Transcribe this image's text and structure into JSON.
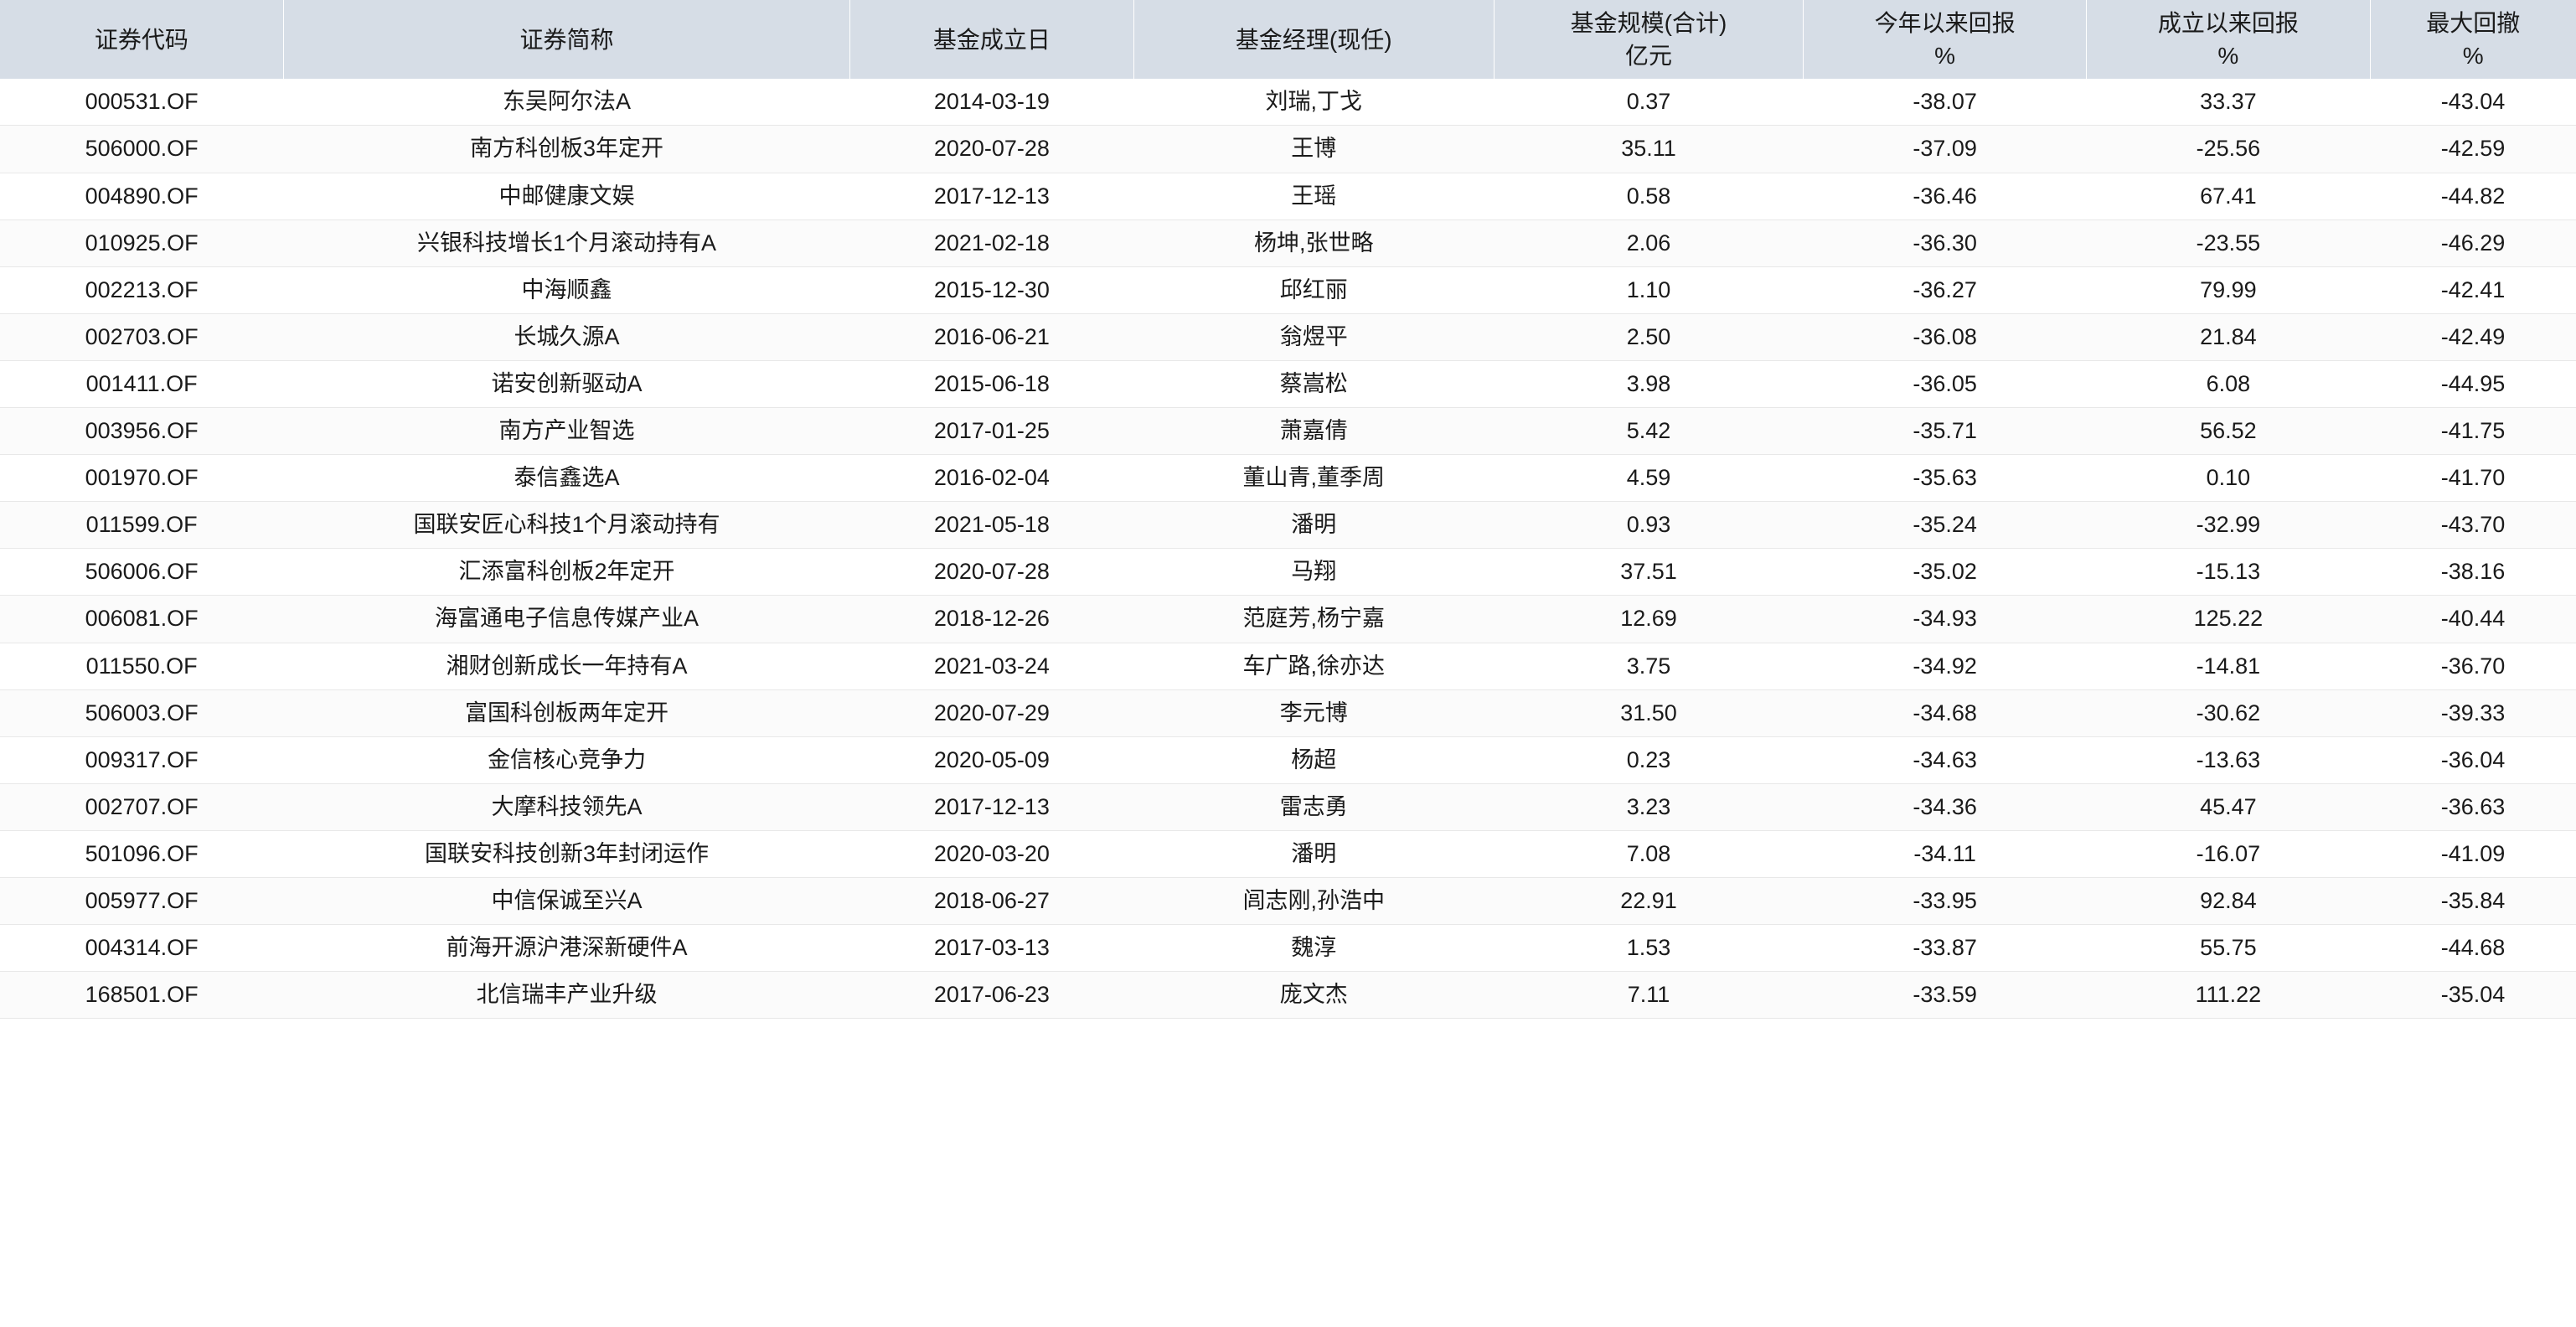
{
  "table": {
    "columns": [
      "证券代码",
      "证券简称",
      "基金成立日",
      "基金经理(现任)",
      "基金规模(合计)\n亿元",
      "今年以来回报\n%",
      "成立以来回报\n%",
      "最大回撤\n%"
    ],
    "rows": [
      [
        "000531.OF",
        "东吴阿尔法A",
        "2014-03-19",
        "刘瑞,丁戈",
        "0.37",
        "-38.07",
        "33.37",
        "-43.04"
      ],
      [
        "506000.OF",
        "南方科创板3年定开",
        "2020-07-28",
        "王博",
        "35.11",
        "-37.09",
        "-25.56",
        "-42.59"
      ],
      [
        "004890.OF",
        "中邮健康文娱",
        "2017-12-13",
        "王瑶",
        "0.58",
        "-36.46",
        "67.41",
        "-44.82"
      ],
      [
        "010925.OF",
        "兴银科技增长1个月滚动持有A",
        "2021-02-18",
        "杨坤,张世略",
        "2.06",
        "-36.30",
        "-23.55",
        "-46.29"
      ],
      [
        "002213.OF",
        "中海顺鑫",
        "2015-12-30",
        "邱红丽",
        "1.10",
        "-36.27",
        "79.99",
        "-42.41"
      ],
      [
        "002703.OF",
        "长城久源A",
        "2016-06-21",
        "翁煜平",
        "2.50",
        "-36.08",
        "21.84",
        "-42.49"
      ],
      [
        "001411.OF",
        "诺安创新驱动A",
        "2015-06-18",
        "蔡嵩松",
        "3.98",
        "-36.05",
        "6.08",
        "-44.95"
      ],
      [
        "003956.OF",
        "南方产业智选",
        "2017-01-25",
        "萧嘉倩",
        "5.42",
        "-35.71",
        "56.52",
        "-41.75"
      ],
      [
        "001970.OF",
        "泰信鑫选A",
        "2016-02-04",
        "董山青,董季周",
        "4.59",
        "-35.63",
        "0.10",
        "-41.70"
      ],
      [
        "011599.OF",
        "国联安匠心科技1个月滚动持有",
        "2021-05-18",
        "潘明",
        "0.93",
        "-35.24",
        "-32.99",
        "-43.70"
      ],
      [
        "506006.OF",
        "汇添富科创板2年定开",
        "2020-07-28",
        "马翔",
        "37.51",
        "-35.02",
        "-15.13",
        "-38.16"
      ],
      [
        "006081.OF",
        "海富通电子信息传媒产业A",
        "2018-12-26",
        "范庭芳,杨宁嘉",
        "12.69",
        "-34.93",
        "125.22",
        "-40.44"
      ],
      [
        "011550.OF",
        "湘财创新成长一年持有A",
        "2021-03-24",
        "车广路,徐亦达",
        "3.75",
        "-34.92",
        "-14.81",
        "-36.70"
      ],
      [
        "506003.OF",
        "富国科创板两年定开",
        "2020-07-29",
        "李元博",
        "31.50",
        "-34.68",
        "-30.62",
        "-39.33"
      ],
      [
        "009317.OF",
        "金信核心竞争力",
        "2020-05-09",
        "杨超",
        "0.23",
        "-34.63",
        "-13.63",
        "-36.04"
      ],
      [
        "002707.OF",
        "大摩科技领先A",
        "2017-12-13",
        "雷志勇",
        "3.23",
        "-34.36",
        "45.47",
        "-36.63"
      ],
      [
        "501096.OF",
        "国联安科技创新3年封闭运作",
        "2020-03-20",
        "潘明",
        "7.08",
        "-34.11",
        "-16.07",
        "-41.09"
      ],
      [
        "005977.OF",
        "中信保诚至兴A",
        "2018-06-27",
        "闾志刚,孙浩中",
        "22.91",
        "-33.95",
        "92.84",
        "-35.84"
      ],
      [
        "004314.OF",
        "前海开源沪港深新硬件A",
        "2017-03-13",
        "魏淳",
        "1.53",
        "-33.87",
        "55.75",
        "-44.68"
      ],
      [
        "168501.OF",
        "北信瑞丰产业升级",
        "2017-06-23",
        "庞文杰",
        "7.11",
        "-33.59",
        "111.22",
        "-35.04"
      ]
    ],
    "header_bg": "#d6dde6",
    "border_color": "#e8e8e8",
    "text_color": "#1a1a1a",
    "font_size_header": 28,
    "font_size_body": 27
  }
}
